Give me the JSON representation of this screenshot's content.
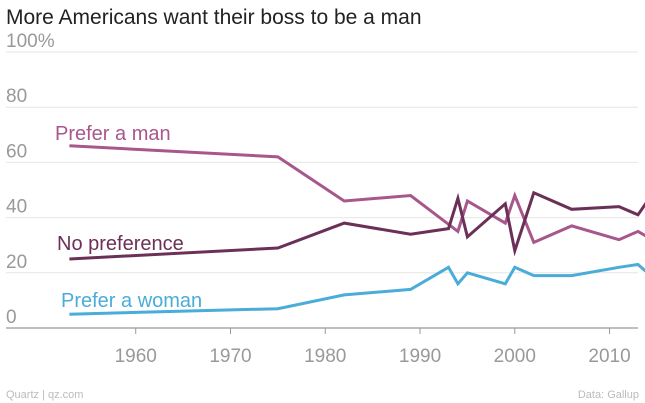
{
  "title": "More Americans want their boss to be a man",
  "footer": {
    "source_left": "Quartz | qz.com",
    "source_right": "Data: Gallup"
  },
  "chart_data": {
    "type": "line",
    "title": "More Americans want their boss to be a man",
    "xlabel": "",
    "ylabel": "",
    "xlim": [
      1948,
      2013
    ],
    "ylim": [
      0,
      100
    ],
    "y_ticks": [
      "100%",
      "80",
      "60",
      "40",
      "20",
      "0"
    ],
    "y_tick_values": [
      100,
      80,
      60,
      40,
      20,
      0
    ],
    "x_ticks": [
      "1960",
      "1970",
      "1980",
      "1990",
      "2000",
      "2010"
    ],
    "x_tick_values": [
      1960,
      1970,
      1980,
      1990,
      2000,
      2010
    ],
    "grid": true,
    "series": [
      {
        "name": "Prefer a man",
        "color": "#a8578c",
        "x": [
          1953,
          1975,
          1982,
          1989,
          1994,
          1995,
          1999,
          2000,
          2002,
          2006,
          2011,
          2013,
          2014
        ],
        "y": [
          66,
          62,
          46,
          48,
          35,
          46,
          38,
          48,
          31,
          37,
          32,
          35,
          33
        ]
      },
      {
        "name": "No preference",
        "color": "#6b3057",
        "x": [
          1953,
          1975,
          1982,
          1989,
          1993,
          1994,
          1995,
          1999,
          2000,
          2002,
          2006,
          2011,
          2013,
          2014
        ],
        "y": [
          25,
          29,
          38,
          34,
          36,
          47,
          33,
          45,
          28,
          49,
          43,
          44,
          41,
          46
        ]
      },
      {
        "name": "Prefer a woman",
        "color": "#4aacd8",
        "x": [
          1953,
          1975,
          1982,
          1989,
          1993,
          1994,
          1995,
          1999,
          2000,
          2002,
          2006,
          2011,
          2013,
          2014
        ],
        "y": [
          5,
          7,
          12,
          14,
          22,
          16,
          20,
          16,
          22,
          19,
          19,
          22,
          23,
          20
        ]
      }
    ]
  }
}
